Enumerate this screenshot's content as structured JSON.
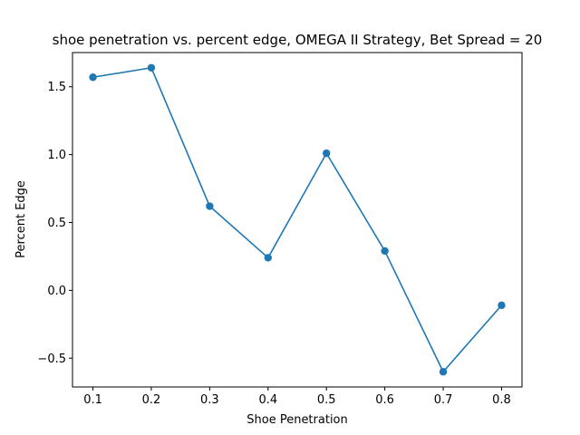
{
  "chart_data": {
    "type": "line",
    "title": "shoe penetration vs. percent edge, OMEGA II Strategy, Bet Spread = 20",
    "xlabel": "Shoe Penetration",
    "ylabel": "Percent Edge",
    "x": [
      0.1,
      0.2,
      0.3,
      0.4,
      0.5,
      0.6,
      0.7,
      0.8
    ],
    "series": [
      {
        "values": [
          1.57,
          1.64,
          0.62,
          0.24,
          1.01,
          0.29,
          -0.6,
          -0.11
        ]
      }
    ],
    "xlim": [
      0.065,
      0.835
    ],
    "ylim": [
      -0.712,
      1.752
    ],
    "xticks": [
      "0.1",
      "0.2",
      "0.3",
      "0.4",
      "0.5",
      "0.6",
      "0.7",
      "0.8"
    ],
    "xtick_values": [
      0.1,
      0.2,
      0.3,
      0.4,
      0.5,
      0.6,
      0.7,
      0.8
    ],
    "yticks": [
      "−0.5",
      "0.0",
      "0.5",
      "1.0",
      "1.5"
    ],
    "ytick_values": [
      -0.5,
      0.0,
      0.5,
      1.0,
      1.5
    ],
    "grid": false,
    "marker": "circle",
    "color": "#1f77b4"
  }
}
